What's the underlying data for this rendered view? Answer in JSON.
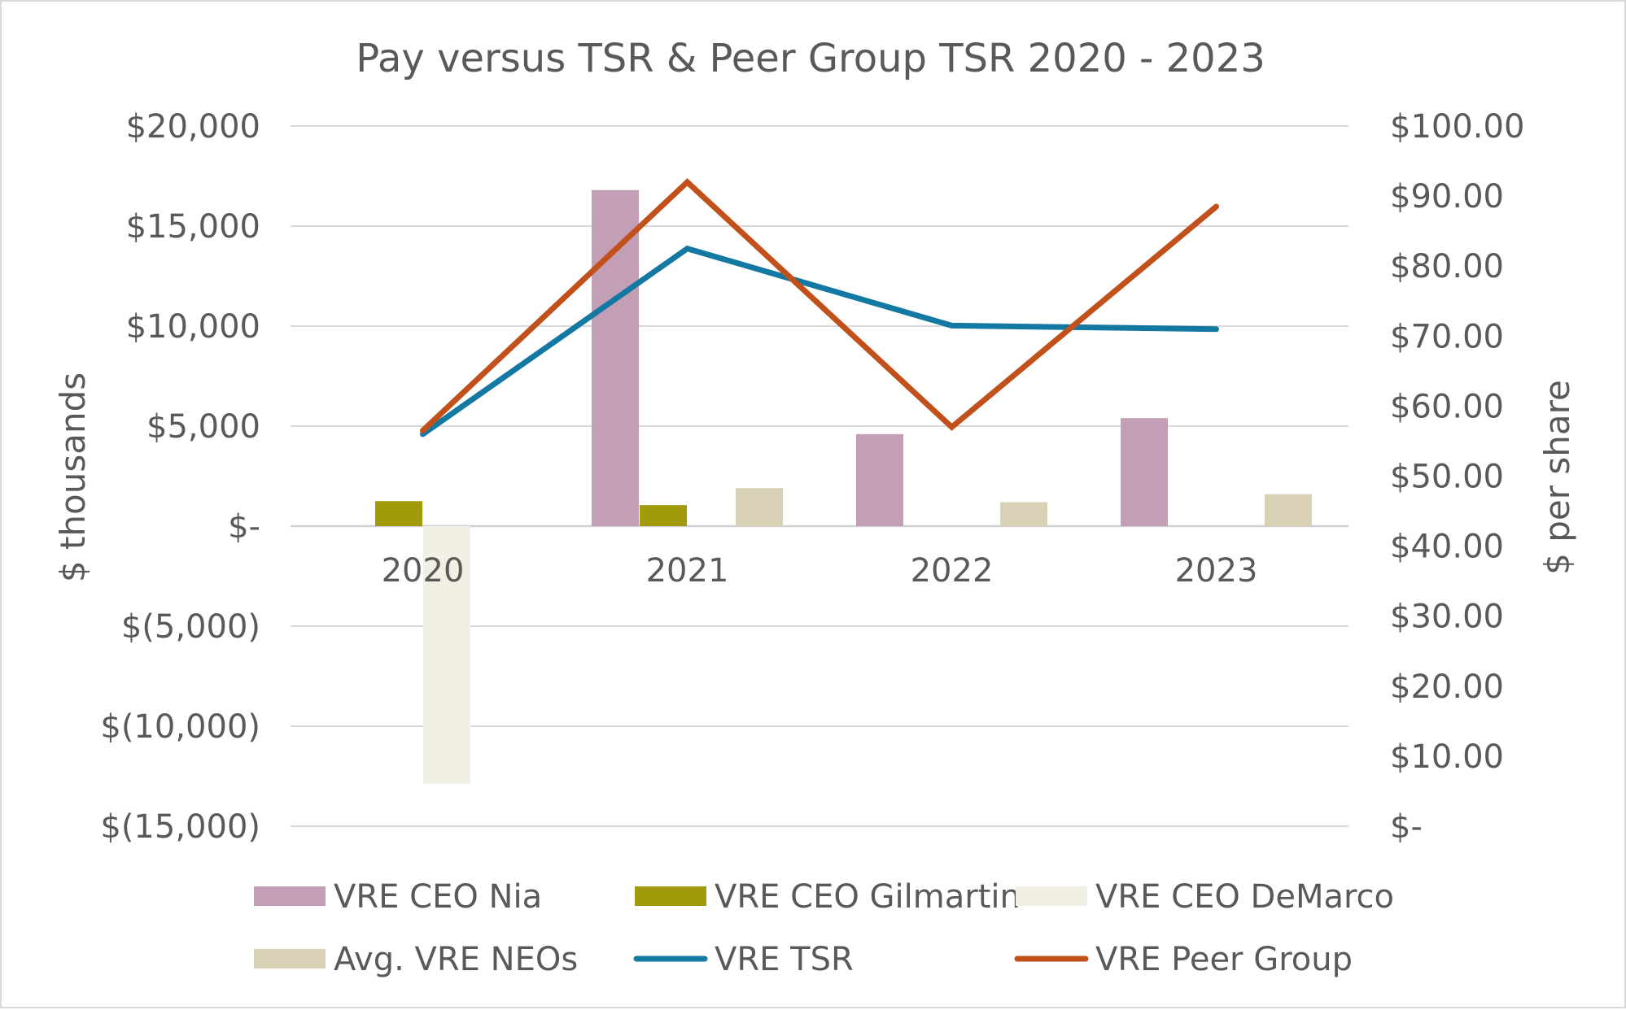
{
  "chart_data": {
    "type": "bar",
    "title": "Pay versus TSR & Peer Group TSR 2020 - 2023",
    "categories": [
      "2020",
      "2021",
      "2022",
      "2023"
    ],
    "ylabel": "$ thousands",
    "ylabel_right": "$ per share",
    "ylim": [
      -15000,
      20000
    ],
    "ylim_right": [
      0,
      100
    ],
    "y_ticks": [
      20000,
      15000,
      10000,
      5000,
      0,
      -5000,
      -10000,
      -15000
    ],
    "y_tick_labels": [
      "$20,000",
      "$15,000",
      "$10,000",
      "$5,000",
      "$-",
      "$(5,000)",
      "$(10,000)",
      "$(15,000)"
    ],
    "y_right_ticks": [
      100,
      90,
      80,
      70,
      60,
      50,
      40,
      30,
      20,
      10,
      0
    ],
    "y_right_tick_labels": [
      "$100.00",
      "$90.00",
      "$80.00",
      "$70.00",
      "$60.00",
      "$50.00",
      "$40.00",
      "$30.00",
      "$20.00",
      "$10.00",
      "$-"
    ],
    "grid": true,
    "legend_position": "bottom",
    "series": [
      {
        "name": "VRE CEO Nia",
        "kind": "bar",
        "axis": "left",
        "color": "#c29fb5",
        "values": [
          null,
          16800,
          4600,
          5400
        ]
      },
      {
        "name": "VRE CEO Gilmartin",
        "kind": "bar",
        "axis": "left",
        "color": "#a19a0a",
        "values": [
          1250,
          1050,
          null,
          null
        ]
      },
      {
        "name": "VRE CEO DeMarco",
        "kind": "bar",
        "axis": "left",
        "color": "#f2efe5",
        "values": [
          -12900,
          null,
          null,
          null
        ]
      },
      {
        "name": "Avg. VRE NEOs",
        "kind": "bar",
        "axis": "left",
        "color": "#d8d1b6",
        "values": [
          null,
          1900,
          1200,
          1600
        ]
      },
      {
        "name": "VRE TSR",
        "kind": "line",
        "axis": "right",
        "color": "#1479a2",
        "values": [
          56.0,
          82.5,
          71.5,
          71.0
        ]
      },
      {
        "name": "VRE Peer Group",
        "kind": "line",
        "axis": "right",
        "color": "#c2501b",
        "values": [
          56.5,
          92.0,
          57.0,
          88.5
        ]
      }
    ]
  }
}
